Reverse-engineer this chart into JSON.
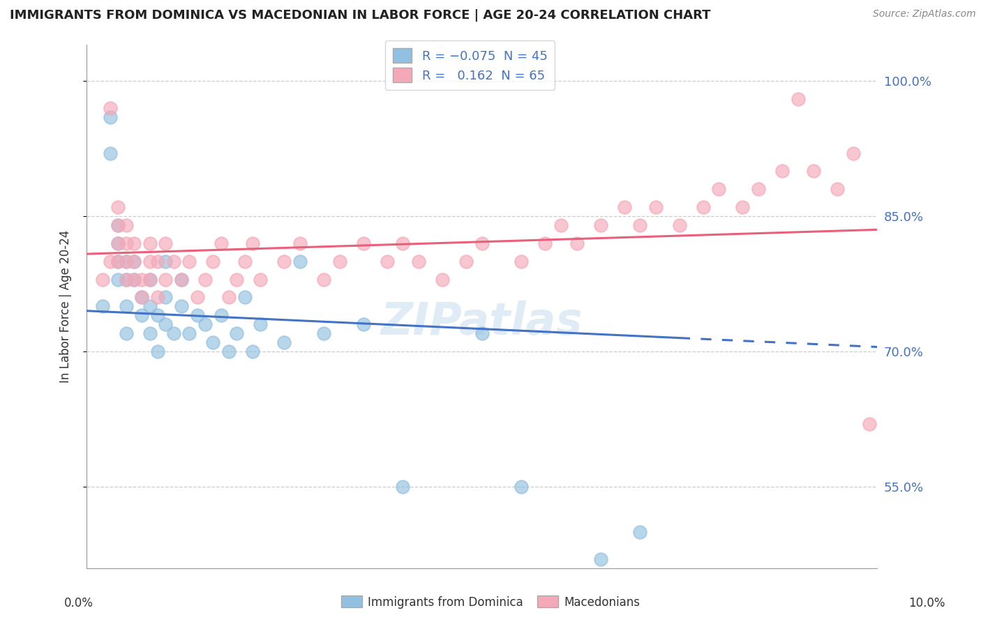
{
  "title": "IMMIGRANTS FROM DOMINICA VS MACEDONIAN IN LABOR FORCE | AGE 20-24 CORRELATION CHART",
  "source": "Source: ZipAtlas.com",
  "ylabel": "In Labor Force | Age 20-24",
  "ytick_labels": [
    "55.0%",
    "70.0%",
    "85.0%",
    "100.0%"
  ],
  "ytick_values": [
    0.55,
    0.7,
    0.85,
    1.0
  ],
  "xlim": [
    0.0,
    0.1
  ],
  "ylim": [
    0.46,
    1.04
  ],
  "R_blue": -0.075,
  "N_blue": 45,
  "R_pink": 0.162,
  "N_pink": 65,
  "blue_color": "#92c0e0",
  "pink_color": "#f4a8b8",
  "blue_line_color": "#4472c4",
  "pink_line_color": "#e8607a",
  "watermark": "ZIPatlas",
  "blue_scatter_x": [
    0.002,
    0.003,
    0.003,
    0.004,
    0.004,
    0.004,
    0.004,
    0.005,
    0.005,
    0.005,
    0.005,
    0.006,
    0.006,
    0.007,
    0.007,
    0.008,
    0.008,
    0.008,
    0.009,
    0.009,
    0.01,
    0.01,
    0.01,
    0.011,
    0.012,
    0.012,
    0.013,
    0.014,
    0.015,
    0.016,
    0.017,
    0.018,
    0.019,
    0.02,
    0.021,
    0.022,
    0.025,
    0.027,
    0.03,
    0.035,
    0.04,
    0.05,
    0.055,
    0.065,
    0.07
  ],
  "blue_scatter_y": [
    0.75,
    0.92,
    0.96,
    0.78,
    0.8,
    0.82,
    0.84,
    0.75,
    0.78,
    0.8,
    0.72,
    0.78,
    0.8,
    0.74,
    0.76,
    0.72,
    0.75,
    0.78,
    0.7,
    0.74,
    0.73,
    0.76,
    0.8,
    0.72,
    0.75,
    0.78,
    0.72,
    0.74,
    0.73,
    0.71,
    0.74,
    0.7,
    0.72,
    0.76,
    0.7,
    0.73,
    0.71,
    0.8,
    0.72,
    0.73,
    0.55,
    0.72,
    0.55,
    0.47,
    0.5
  ],
  "pink_scatter_x": [
    0.002,
    0.003,
    0.003,
    0.004,
    0.004,
    0.004,
    0.004,
    0.005,
    0.005,
    0.005,
    0.005,
    0.006,
    0.006,
    0.006,
    0.007,
    0.007,
    0.008,
    0.008,
    0.008,
    0.009,
    0.009,
    0.01,
    0.01,
    0.011,
    0.012,
    0.013,
    0.014,
    0.015,
    0.016,
    0.017,
    0.018,
    0.019,
    0.02,
    0.021,
    0.022,
    0.025,
    0.027,
    0.03,
    0.032,
    0.035,
    0.038,
    0.04,
    0.042,
    0.045,
    0.048,
    0.05,
    0.055,
    0.058,
    0.06,
    0.062,
    0.065,
    0.068,
    0.07,
    0.072,
    0.075,
    0.078,
    0.08,
    0.083,
    0.085,
    0.088,
    0.09,
    0.092,
    0.095,
    0.097,
    0.099
  ],
  "pink_scatter_y": [
    0.78,
    0.8,
    0.97,
    0.8,
    0.82,
    0.84,
    0.86,
    0.78,
    0.8,
    0.82,
    0.84,
    0.78,
    0.8,
    0.82,
    0.76,
    0.78,
    0.78,
    0.8,
    0.82,
    0.76,
    0.8,
    0.78,
    0.82,
    0.8,
    0.78,
    0.8,
    0.76,
    0.78,
    0.8,
    0.82,
    0.76,
    0.78,
    0.8,
    0.82,
    0.78,
    0.8,
    0.82,
    0.78,
    0.8,
    0.82,
    0.8,
    0.82,
    0.8,
    0.78,
    0.8,
    0.82,
    0.8,
    0.82,
    0.84,
    0.82,
    0.84,
    0.86,
    0.84,
    0.86,
    0.84,
    0.86,
    0.88,
    0.86,
    0.88,
    0.9,
    0.98,
    0.9,
    0.88,
    0.92,
    0.62
  ]
}
